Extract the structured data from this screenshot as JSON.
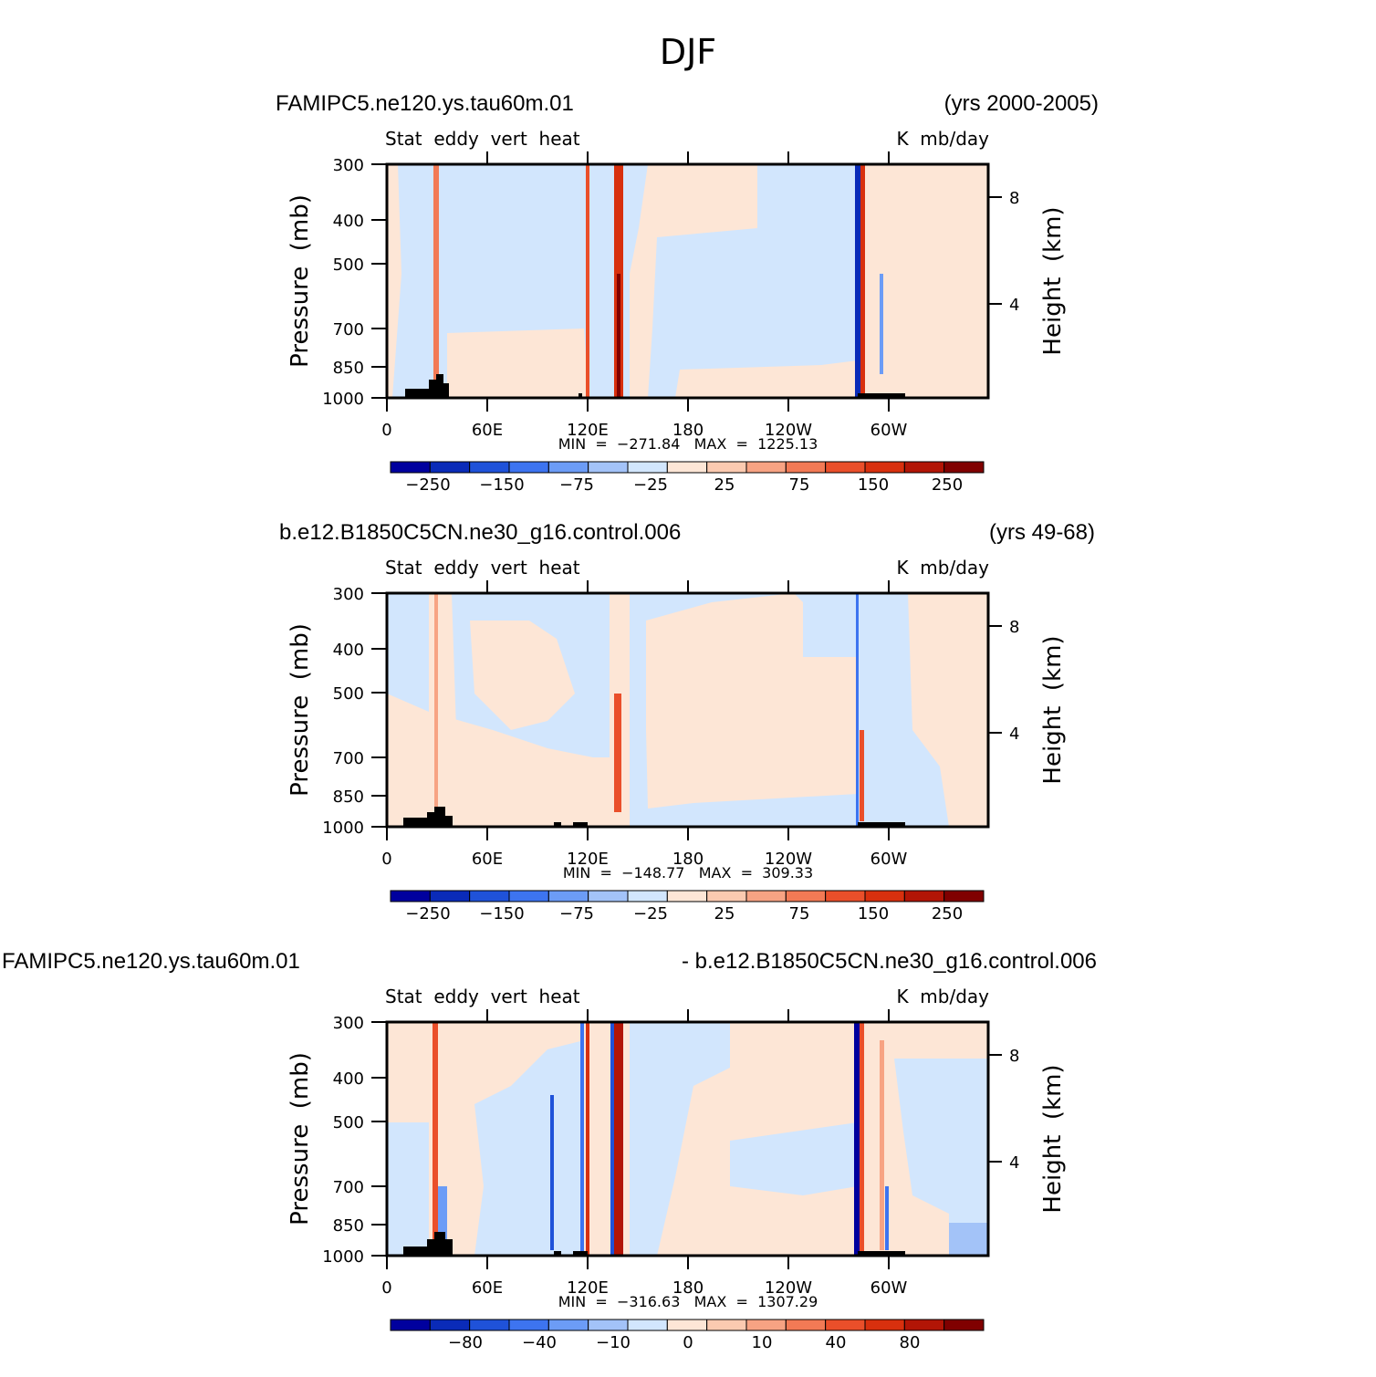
{
  "figure": {
    "title": "DJF"
  },
  "colors": {
    "frame": "#000000",
    "topography": "#000000"
  },
  "chart_data": [
    {
      "type": "heatmap",
      "panel": 1,
      "case_left": "FAMIPC5.ne120.ys.tau60m.01",
      "case_right": "(yrs 2000-2005)",
      "variable": "Stat  eddy  vert  heat",
      "units": "K  mb/day",
      "ylabel": "Pressure  (mb)",
      "ylabel_right": "Height  (km)",
      "x_ticks": [
        "0",
        "60E",
        "120E",
        "180",
        "120W",
        "60W"
      ],
      "y_ticks": [
        "300",
        "400",
        "500",
        "700",
        "850",
        "1000"
      ],
      "y_ticks_right": [
        "8",
        "4"
      ],
      "ylim": [
        1000,
        300
      ],
      "stats": "MIN  =  −271.84   MAX  =  1225.13",
      "colorbar_labels": [
        "−250",
        "−150",
        "−75",
        "−25",
        "25",
        "75",
        "150",
        "250"
      ],
      "colorbar_colors": [
        "#00009e",
        "#0a2bb8",
        "#1f52d9",
        "#3d74f0",
        "#6c9cf6",
        "#a3c3f8",
        "#d2e6fd",
        "#fde6d6",
        "#fbcab0",
        "#f7a383",
        "#f27a55",
        "#ea4f2a",
        "#d8300e",
        "#b21506",
        "#800000"
      ],
      "dominant_field": [
        {
          "lon_range": [
            0,
            150
          ],
          "level": "weak negative"
        },
        {
          "lon_range": [
            150,
            335
          ],
          "level": "weak positive"
        }
      ],
      "features": [
        {
          "lon": 29,
          "sign": "positive",
          "strength": "strong"
        },
        {
          "lon": 119,
          "sign": "positive",
          "strength": "strong"
        },
        {
          "lon": 138,
          "sign": "positive",
          "strength": "very strong"
        },
        {
          "lon": 282,
          "sign": "negative",
          "strength": "very strong"
        },
        {
          "lon": 285,
          "sign": "positive",
          "strength": "strong"
        }
      ]
    },
    {
      "type": "heatmap",
      "panel": 2,
      "case_left": "b.e12.B1850C5CN.ne30_g16.control.006",
      "case_right": "(yrs 49-68)",
      "variable": "Stat  eddy  vert  heat",
      "units": "K  mb/day",
      "ylabel": "Pressure  (mb)",
      "ylabel_right": "Height  (km)",
      "x_ticks": [
        "0",
        "60E",
        "120E",
        "180",
        "120W",
        "60W"
      ],
      "y_ticks": [
        "300",
        "400",
        "500",
        "700",
        "850",
        "1000"
      ],
      "y_ticks_right": [
        "8",
        "4"
      ],
      "ylim": [
        1000,
        300
      ],
      "stats": "MIN  =  −148.77   MAX  =  309.33",
      "colorbar_labels": [
        "−250",
        "−150",
        "−75",
        "−25",
        "25",
        "75",
        "150",
        "250"
      ],
      "colorbar_colors": [
        "#00009e",
        "#0a2bb8",
        "#1f52d9",
        "#3d74f0",
        "#6c9cf6",
        "#a3c3f8",
        "#d2e6fd",
        "#fde6d6",
        "#fbcab0",
        "#f7a383",
        "#f27a55",
        "#ea4f2a",
        "#d8300e",
        "#b21506",
        "#800000"
      ],
      "features": [
        {
          "lon": 29,
          "sign": "positive",
          "strength": "weak"
        },
        {
          "lon": 138,
          "sign": "positive",
          "strength": "moderate"
        },
        {
          "lon": 282,
          "sign": "negative",
          "strength": "moderate"
        },
        {
          "lon": 285,
          "sign": "positive",
          "strength": "moderate"
        }
      ]
    },
    {
      "type": "heatmap",
      "panel": 3,
      "case_left": "FAMIPC5.ne120.ys.tau60m.01",
      "case_right": "- b.e12.B1850C5CN.ne30_g16.control.006",
      "variable": "Stat  eddy  vert  heat",
      "units": "K  mb/day",
      "ylabel": "Pressure  (mb)",
      "ylabel_right": "Height  (km)",
      "x_ticks": [
        "0",
        "60E",
        "120E",
        "180",
        "120W",
        "60W"
      ],
      "y_ticks": [
        "300",
        "400",
        "500",
        "700",
        "850",
        "1000"
      ],
      "y_ticks_right": [
        "8",
        "4"
      ],
      "ylim": [
        1000,
        300
      ],
      "stats": "MIN  =  −316.63   MAX  =  1307.29",
      "colorbar_labels": [
        "−80",
        "−40",
        "−10",
        "0",
        "10",
        "40",
        "80"
      ],
      "colorbar_colors": [
        "#00009e",
        "#0a2bb8",
        "#1f52d9",
        "#3d74f0",
        "#6c9cf6",
        "#a3c3f8",
        "#d2e6fd",
        "#fde6d6",
        "#fbcab0",
        "#f7a383",
        "#f27a55",
        "#ea4f2a",
        "#d8300e",
        "#b21506",
        "#800000"
      ],
      "features": [
        {
          "lon": 29,
          "sign": "positive",
          "strength": "strong"
        },
        {
          "lon": 119,
          "sign": "positive",
          "strength": "strong"
        },
        {
          "lon": 138,
          "sign": "positive",
          "strength": "very strong"
        },
        {
          "lon": 281,
          "sign": "negative",
          "strength": "very strong"
        },
        {
          "lon": 287,
          "sign": "positive",
          "strength": "strong"
        }
      ]
    }
  ]
}
